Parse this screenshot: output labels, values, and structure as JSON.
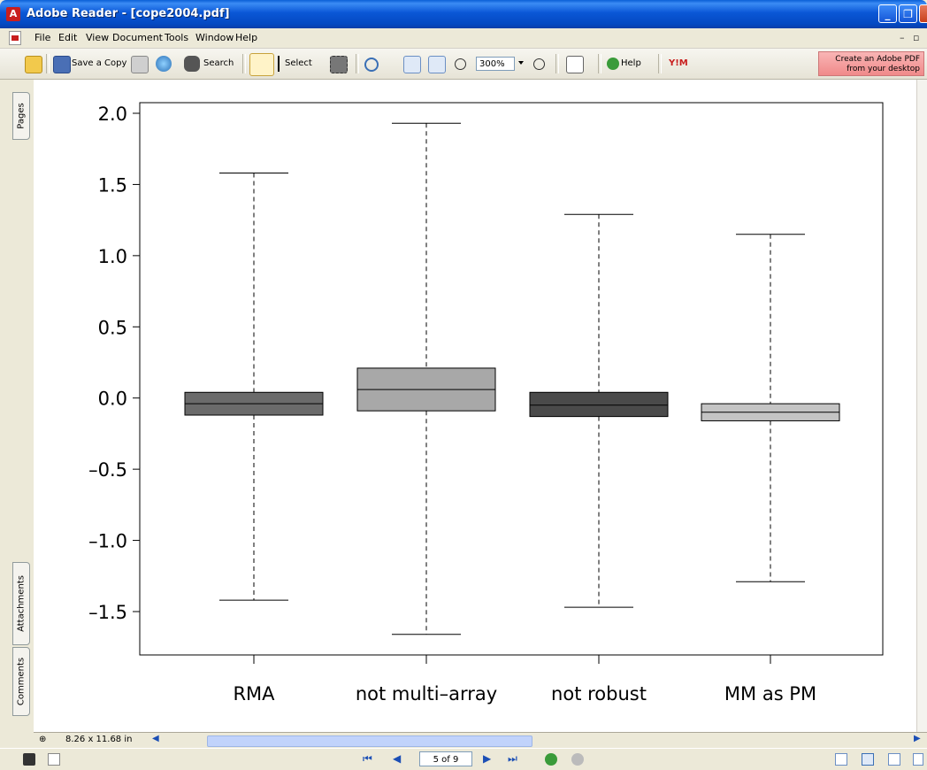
{
  "window": {
    "title": "Adobe Reader - [cope2004.pdf]",
    "minimize_label": "_",
    "restore_label": "❐",
    "close_label": "✕"
  },
  "menubar": {
    "items": [
      "File",
      "Edit",
      "View",
      "Document",
      "Tools",
      "Window",
      "Help"
    ],
    "mdi_min": "–",
    "mdi_restore": "▫"
  },
  "toolbar": {
    "save_copy_label": "Save a Copy",
    "search_label": "Search",
    "select_label": "Select",
    "zoom_value": "300%",
    "help_label": "Help",
    "ym_label": "Y!M",
    "create_pdf_label_1": "Create an Adobe PDF",
    "create_pdf_label_2": "from your desktop"
  },
  "navpanel": {
    "tabs": [
      "Pages",
      "Attachments",
      "Comments"
    ]
  },
  "hscroll": {
    "page_size": "8.26 x 11.68 in"
  },
  "statusbar": {
    "page_indicator": "5 of 9"
  },
  "chart_data": {
    "type": "boxplot",
    "categories": [
      "RMA",
      "not multi–array",
      "not robust",
      "MM as PM"
    ],
    "series": [
      {
        "category": "RMA",
        "whisker_low": -1.42,
        "q1": -0.12,
        "median": -0.04,
        "q3": 0.04,
        "whisker_high": 1.58,
        "color": "#6b6b6b"
      },
      {
        "category": "not multi–array",
        "whisker_low": -1.66,
        "q1": -0.09,
        "median": 0.06,
        "q3": 0.21,
        "whisker_high": 1.93,
        "color": "#a8a8a8"
      },
      {
        "category": "not robust",
        "whisker_low": -1.47,
        "q1": -0.13,
        "median": -0.05,
        "q3": 0.04,
        "whisker_high": 1.29,
        "color": "#4a4a4a"
      },
      {
        "category": "MM as PM",
        "whisker_low": -1.29,
        "q1": -0.16,
        "median": -0.1,
        "q3": -0.04,
        "whisker_high": 1.15,
        "color": "#c4c4c4"
      }
    ],
    "yticks": [
      "2.0",
      "1.5",
      "1.0",
      "0.5",
      "0.0",
      "–0.5",
      "–1.0",
      "–1.5"
    ],
    "ytick_values": [
      2.0,
      1.5,
      1.0,
      0.5,
      0.0,
      -0.5,
      -1.0,
      -1.5
    ],
    "ylim": [
      -1.8,
      2.08
    ],
    "title": "",
    "xlabel": "",
    "ylabel": ""
  }
}
